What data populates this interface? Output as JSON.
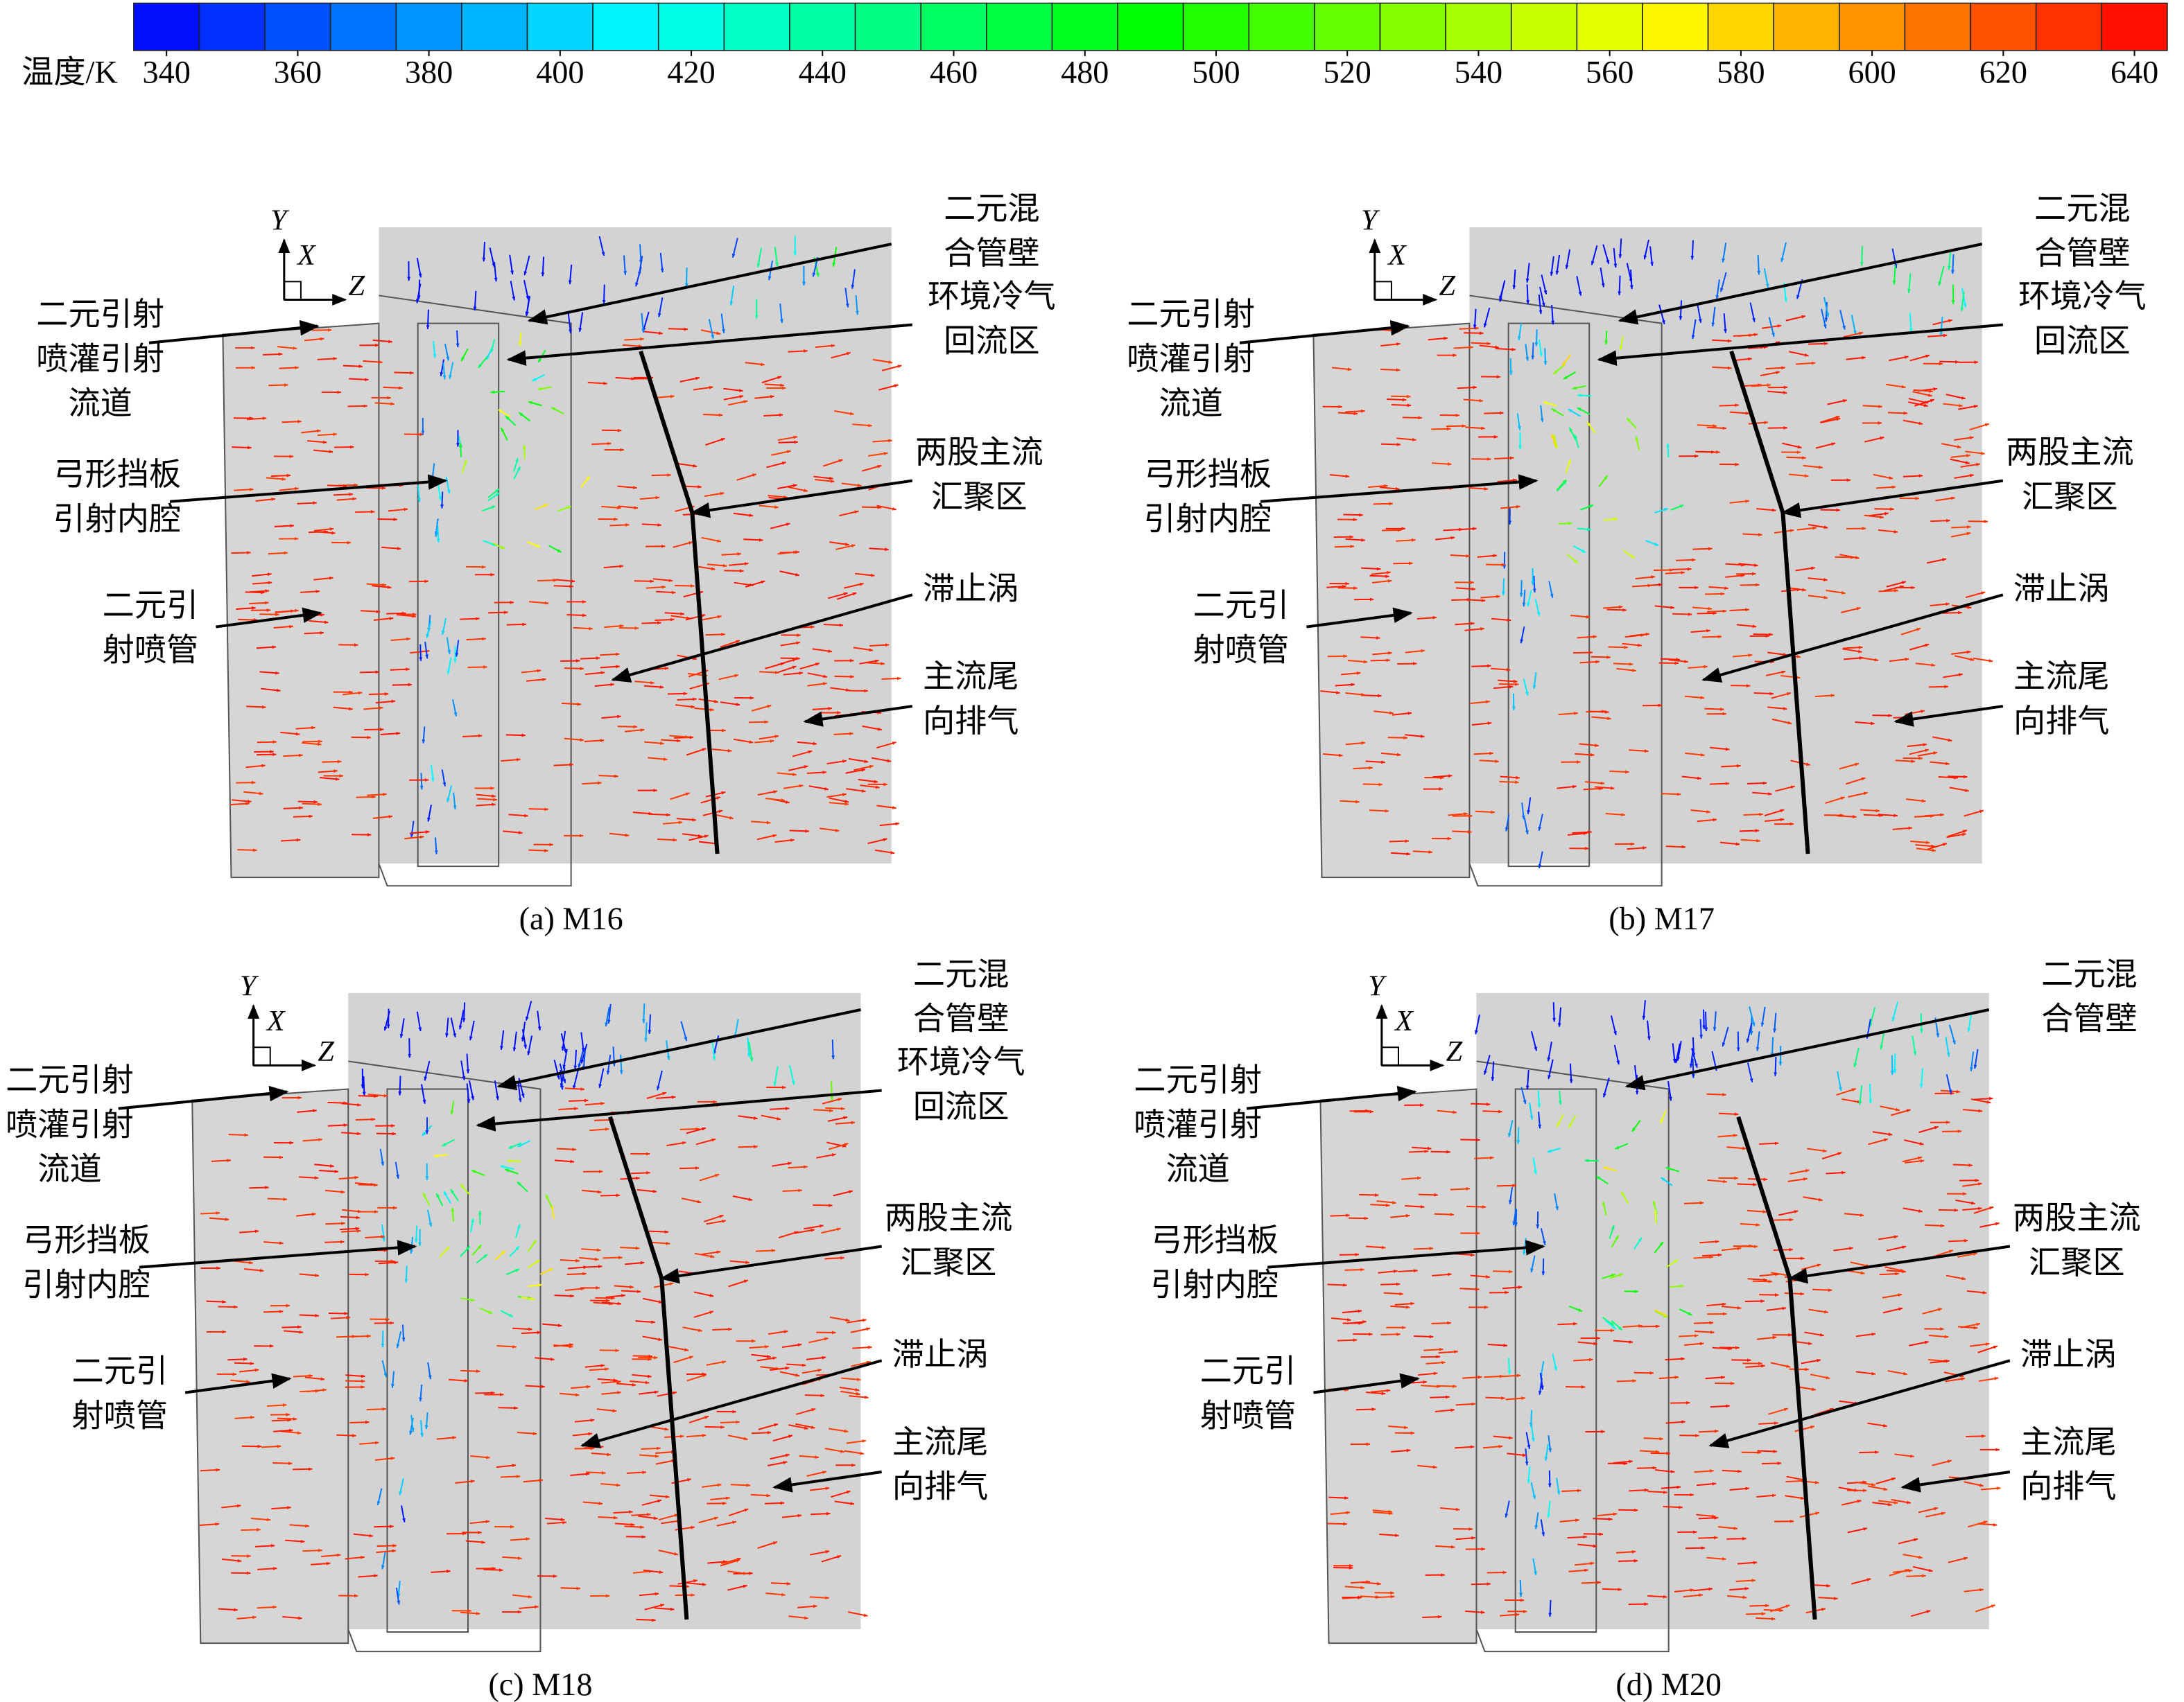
{
  "colorbar": {
    "label": "温度/K",
    "lim": [
      335,
      645
    ],
    "ticks": [
      340,
      360,
      380,
      400,
      420,
      440,
      460,
      480,
      500,
      520,
      540,
      560,
      580,
      600,
      620,
      640
    ]
  },
  "axes": [
    "Y",
    "X",
    "Z"
  ],
  "panels": [
    {
      "caption": "(a) M16",
      "labels": [
        {
          "lines": [
            "二元混",
            "合管壁"
          ]
        },
        {
          "lines": [
            "环境冷气",
            "回流区"
          ]
        },
        {
          "lines": [
            "二元引射",
            "喷灌引射",
            "流道"
          ]
        },
        {
          "lines": [
            "两股主流",
            "汇聚区"
          ]
        },
        {
          "lines": [
            "弓形挡板",
            "引射内腔"
          ]
        },
        {
          "lines": [
            "滞止涡"
          ]
        },
        {
          "lines": [
            "二元引",
            "射喷管"
          ]
        },
        {
          "lines": [
            "主流尾",
            "向排气"
          ]
        }
      ]
    },
    {
      "caption": "(b) M17",
      "labels": [
        {
          "lines": [
            "二元混",
            "合管壁"
          ]
        },
        {
          "lines": [
            "环境冷气",
            "回流区"
          ]
        },
        {
          "lines": [
            "二元引射",
            "喷灌引射",
            "流道"
          ]
        },
        {
          "lines": [
            "两股主流",
            "汇聚区"
          ]
        },
        {
          "lines": [
            "弓形挡板",
            "引射内腔"
          ]
        },
        {
          "lines": [
            "滞止涡"
          ]
        },
        {
          "lines": [
            "二元引",
            "射喷管"
          ]
        },
        {
          "lines": [
            "主流尾",
            "向排气"
          ]
        }
      ]
    },
    {
      "caption": "(c) M18",
      "labels": [
        {
          "lines": [
            "二元混",
            "合管壁"
          ]
        },
        {
          "lines": [
            "环境冷气",
            "回流区"
          ]
        },
        {
          "lines": [
            "二元引射",
            "喷灌引射",
            "流道"
          ]
        },
        {
          "lines": [
            "两股主流",
            "汇聚区"
          ]
        },
        {
          "lines": [
            "弓形挡板",
            "引射内腔"
          ]
        },
        {
          "lines": [
            "滞止涡"
          ]
        },
        {
          "lines": [
            "二元引",
            "射喷管"
          ]
        },
        {
          "lines": [
            "主流尾",
            "向排气"
          ]
        }
      ]
    },
    {
      "caption": "(d) M20",
      "labels": [
        {
          "lines": [
            "二元混",
            "合管壁"
          ]
        },
        {
          "lines": [
            "二元引射",
            "喷灌引射",
            "流道"
          ]
        },
        {
          "lines": [
            "两股主流",
            "汇聚区"
          ]
        },
        {
          "lines": [
            "弓形挡板",
            "引射内腔"
          ]
        },
        {
          "lines": [
            "滞止涡"
          ]
        },
        {
          "lines": [
            "二元引",
            "射喷管"
          ]
        },
        {
          "lines": [
            "主流尾",
            "向排气"
          ]
        }
      ]
    }
  ]
}
